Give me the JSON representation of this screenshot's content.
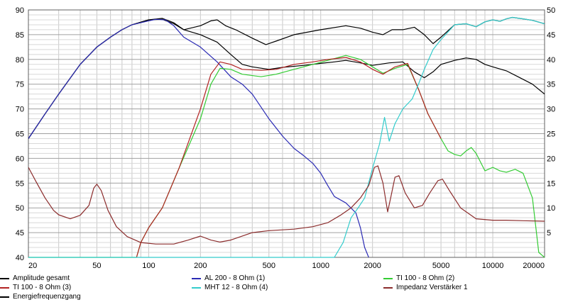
{
  "chart_data": {
    "type": "line",
    "x_scale": "log",
    "xlim": [
      20,
      20000
    ],
    "ylim": [
      40,
      90
    ],
    "y2lim": [
      0,
      50
    ],
    "grid": true,
    "legend_position": "bottom",
    "x_ticks": [
      20,
      50,
      100,
      200,
      500,
      1000,
      2000,
      5000,
      10000,
      20000
    ],
    "x_tick_labels": [
      "20",
      "50",
      "100",
      "200",
      "500",
      "1000",
      "2000",
      "5000",
      "10000",
      "20000"
    ],
    "y_ticks": [
      40,
      45,
      50,
      55,
      60,
      65,
      70,
      75,
      80,
      85,
      90
    ],
    "y_tick_labels": [
      "40",
      "45",
      "50",
      "55",
      "60",
      "65",
      "70",
      "75",
      "80",
      "85",
      "90"
    ],
    "y2_ticks": [
      5,
      10,
      15,
      20,
      25,
      30,
      35,
      40,
      45,
      50
    ],
    "y2_tick_labels": [
      "5",
      "10",
      "15",
      "20",
      "25",
      "30",
      "35",
      "40",
      "45",
      "50"
    ],
    "series": [
      {
        "name": "Amplitude gesamt",
        "color": "#000000",
        "axis": "left",
        "points": [
          [
            20,
            64
          ],
          [
            25,
            69
          ],
          [
            30,
            73
          ],
          [
            40,
            79
          ],
          [
            50,
            82.5
          ],
          [
            60,
            84.5
          ],
          [
            70,
            86
          ],
          [
            80,
            87
          ],
          [
            100,
            88
          ],
          [
            120,
            88.3
          ],
          [
            140,
            87.4
          ],
          [
            160,
            86
          ],
          [
            200,
            86.8
          ],
          [
            230,
            87.8
          ],
          [
            250,
            88
          ],
          [
            280,
            86.8
          ],
          [
            320,
            86
          ],
          [
            400,
            84.3
          ],
          [
            480,
            83
          ],
          [
            550,
            83.7
          ],
          [
            700,
            85
          ],
          [
            1000,
            86
          ],
          [
            1400,
            86.8
          ],
          [
            1700,
            86.3
          ],
          [
            2000,
            85.5
          ],
          [
            2300,
            85
          ],
          [
            2600,
            86
          ],
          [
            3000,
            86
          ],
          [
            3500,
            86.5
          ],
          [
            4000,
            85
          ],
          [
            4500,
            83.2
          ],
          [
            5000,
            84.5
          ],
          [
            6000,
            87
          ],
          [
            7000,
            87.2
          ],
          [
            8000,
            86.6
          ],
          [
            9000,
            87.6
          ],
          [
            10000,
            88
          ],
          [
            11000,
            87.7
          ],
          [
            12000,
            88.2
          ],
          [
            13000,
            88.5
          ],
          [
            15000,
            88.2
          ],
          [
            17000,
            87.9
          ],
          [
            20000,
            87.2
          ]
        ]
      },
      {
        "name": "Energiefrequenzgang",
        "color": "#000000",
        "axis": "left",
        "points": [
          [
            20,
            64
          ],
          [
            25,
            69
          ],
          [
            30,
            73
          ],
          [
            40,
            79
          ],
          [
            50,
            82.5
          ],
          [
            60,
            84.5
          ],
          [
            70,
            86
          ],
          [
            80,
            87
          ],
          [
            100,
            88
          ],
          [
            120,
            88.1
          ],
          [
            140,
            87.2
          ],
          [
            160,
            86
          ],
          [
            200,
            85
          ],
          [
            250,
            83.5
          ],
          [
            300,
            81
          ],
          [
            350,
            79
          ],
          [
            400,
            78.5
          ],
          [
            500,
            78
          ],
          [
            600,
            78.4
          ],
          [
            800,
            78.8
          ],
          [
            1000,
            79.2
          ],
          [
            1200,
            79.5
          ],
          [
            1400,
            79.8
          ],
          [
            1700,
            79.3
          ],
          [
            2000,
            78.8
          ],
          [
            2500,
            79.3
          ],
          [
            3000,
            79.5
          ],
          [
            3500,
            77.5
          ],
          [
            4000,
            76.3
          ],
          [
            4500,
            77.5
          ],
          [
            5000,
            79
          ],
          [
            6000,
            79.8
          ],
          [
            7000,
            80.3
          ],
          [
            8000,
            80
          ],
          [
            9000,
            79
          ],
          [
            10000,
            78.5
          ],
          [
            12000,
            77.7
          ],
          [
            14000,
            76.5
          ],
          [
            17000,
            75
          ],
          [
            20000,
            73
          ]
        ]
      },
      {
        "name": "AL 200 - 8 Ohm (1)",
        "color": "#2a2ab4",
        "axis": "left",
        "points": [
          [
            20,
            64
          ],
          [
            25,
            69
          ],
          [
            30,
            73
          ],
          [
            40,
            79
          ],
          [
            50,
            82.5
          ],
          [
            60,
            84.5
          ],
          [
            70,
            86
          ],
          [
            80,
            87
          ],
          [
            100,
            87.8
          ],
          [
            110,
            88.1
          ],
          [
            125,
            88
          ],
          [
            140,
            86.8
          ],
          [
            160,
            84.5
          ],
          [
            200,
            82.5
          ],
          [
            250,
            79.5
          ],
          [
            300,
            76.5
          ],
          [
            350,
            75
          ],
          [
            400,
            73
          ],
          [
            500,
            68
          ],
          [
            600,
            64.5
          ],
          [
            700,
            62
          ],
          [
            800,
            60.5
          ],
          [
            900,
            59
          ],
          [
            1000,
            57
          ],
          [
            1100,
            54.5
          ],
          [
            1200,
            52.3
          ],
          [
            1400,
            51
          ],
          [
            1600,
            49
          ],
          [
            1700,
            46
          ],
          [
            1800,
            42
          ],
          [
            1900,
            40
          ]
        ]
      },
      {
        "name": "TI 100 - 8 Ohm (2)",
        "color": "#33cc33",
        "axis": "left",
        "points": [
          [
            20,
            40
          ],
          [
            40,
            40
          ],
          [
            60,
            40
          ],
          [
            85,
            40
          ],
          [
            90,
            43
          ],
          [
            100,
            46
          ],
          [
            120,
            50
          ],
          [
            150,
            58
          ],
          [
            200,
            68
          ],
          [
            230,
            75
          ],
          [
            260,
            78.2
          ],
          [
            300,
            78
          ],
          [
            350,
            77
          ],
          [
            450,
            76.5
          ],
          [
            550,
            77
          ],
          [
            700,
            78
          ],
          [
            900,
            79
          ],
          [
            1100,
            79.8
          ],
          [
            1400,
            80.8
          ],
          [
            1700,
            80
          ],
          [
            2000,
            78.5
          ],
          [
            2300,
            77.2
          ],
          [
            2700,
            78.2
          ],
          [
            3200,
            79
          ],
          [
            3700,
            74
          ],
          [
            4200,
            69
          ],
          [
            5000,
            64
          ],
          [
            5500,
            61.5
          ],
          [
            6000,
            60.8
          ],
          [
            6500,
            60.5
          ],
          [
            7000,
            61.5
          ],
          [
            7500,
            62.2
          ],
          [
            8000,
            61
          ],
          [
            9000,
            57.5
          ],
          [
            10000,
            58.2
          ],
          [
            11000,
            57.5
          ],
          [
            12000,
            57.2
          ],
          [
            13500,
            57.8
          ],
          [
            15000,
            57
          ],
          [
            17000,
            52
          ],
          [
            18500,
            41
          ],
          [
            20000,
            40
          ]
        ]
      },
      {
        "name": "TI 100 - 8 Ohm (3)",
        "color": "#b22222",
        "axis": "left",
        "points": [
          [
            85,
            40
          ],
          [
            90,
            43
          ],
          [
            100,
            46
          ],
          [
            120,
            50
          ],
          [
            150,
            58
          ],
          [
            200,
            70
          ],
          [
            230,
            77
          ],
          [
            260,
            79.5
          ],
          [
            300,
            79
          ],
          [
            350,
            78
          ],
          [
            450,
            77.8
          ],
          [
            550,
            78
          ],
          [
            700,
            79
          ],
          [
            900,
            79.5
          ],
          [
            1100,
            80
          ],
          [
            1400,
            80.4
          ],
          [
            1700,
            79.5
          ],
          [
            2000,
            78
          ],
          [
            2300,
            77
          ],
          [
            2700,
            78.5
          ],
          [
            3200,
            79.2
          ],
          [
            3700,
            74
          ],
          [
            4200,
            69
          ],
          [
            5000,
            64
          ]
        ]
      },
      {
        "name": "MHT 12 - 8 Ohm (4)",
        "color": "#33cccc",
        "axis": "left",
        "points": [
          [
            20,
            40
          ],
          [
            1200,
            40
          ],
          [
            1350,
            43
          ],
          [
            1500,
            48
          ],
          [
            1650,
            50
          ],
          [
            1800,
            52
          ],
          [
            2000,
            58
          ],
          [
            2200,
            63
          ],
          [
            2350,
            68.3
          ],
          [
            2500,
            63.5
          ],
          [
            2700,
            67
          ],
          [
            3000,
            70
          ],
          [
            3400,
            72
          ],
          [
            3700,
            75
          ],
          [
            4000,
            78
          ],
          [
            4500,
            82
          ],
          [
            5000,
            84
          ],
          [
            6000,
            87
          ],
          [
            7000,
            87.2
          ],
          [
            8000,
            86.6
          ],
          [
            9000,
            87.6
          ],
          [
            10000,
            88
          ],
          [
            11000,
            87.7
          ],
          [
            12000,
            88.2
          ],
          [
            13000,
            88.5
          ],
          [
            15000,
            88.2
          ],
          [
            17000,
            87.9
          ],
          [
            20000,
            87.2
          ]
        ]
      },
      {
        "name": "Impedanz Verstärker 1",
        "color": "#8b2c2c",
        "axis": "right",
        "points": [
          [
            20,
            18.2
          ],
          [
            22,
            15.5
          ],
          [
            25,
            12
          ],
          [
            28,
            9.5
          ],
          [
            30,
            8.6
          ],
          [
            35,
            7.8
          ],
          [
            40,
            8.5
          ],
          [
            45,
            10.5
          ],
          [
            48,
            14
          ],
          [
            50,
            14.8
          ],
          [
            53,
            13.5
          ],
          [
            58,
            9.5
          ],
          [
            65,
            6.2
          ],
          [
            75,
            4.2
          ],
          [
            90,
            3
          ],
          [
            110,
            2.7
          ],
          [
            140,
            2.7
          ],
          [
            170,
            3.5
          ],
          [
            200,
            4.3
          ],
          [
            230,
            3.5
          ],
          [
            260,
            3.1
          ],
          [
            300,
            3.5
          ],
          [
            400,
            5
          ],
          [
            500,
            5.4
          ],
          [
            700,
            5.7
          ],
          [
            900,
            6.2
          ],
          [
            1100,
            7
          ],
          [
            1300,
            8.5
          ],
          [
            1500,
            10
          ],
          [
            1700,
            12
          ],
          [
            1900,
            14.5
          ],
          [
            2050,
            18.2
          ],
          [
            2150,
            18.5
          ],
          [
            2300,
            15
          ],
          [
            2450,
            9.2
          ],
          [
            2550,
            12
          ],
          [
            2700,
            16.2
          ],
          [
            2850,
            16.5
          ],
          [
            3100,
            13
          ],
          [
            3500,
            10
          ],
          [
            3900,
            10.5
          ],
          [
            4300,
            13
          ],
          [
            4800,
            15.5
          ],
          [
            5100,
            15.8
          ],
          [
            5600,
            13.5
          ],
          [
            6500,
            10
          ],
          [
            8000,
            7.8
          ],
          [
            10000,
            7.5
          ],
          [
            12000,
            7.5
          ],
          [
            15000,
            7.4
          ],
          [
            20000,
            7.3
          ]
        ]
      }
    ]
  }
}
